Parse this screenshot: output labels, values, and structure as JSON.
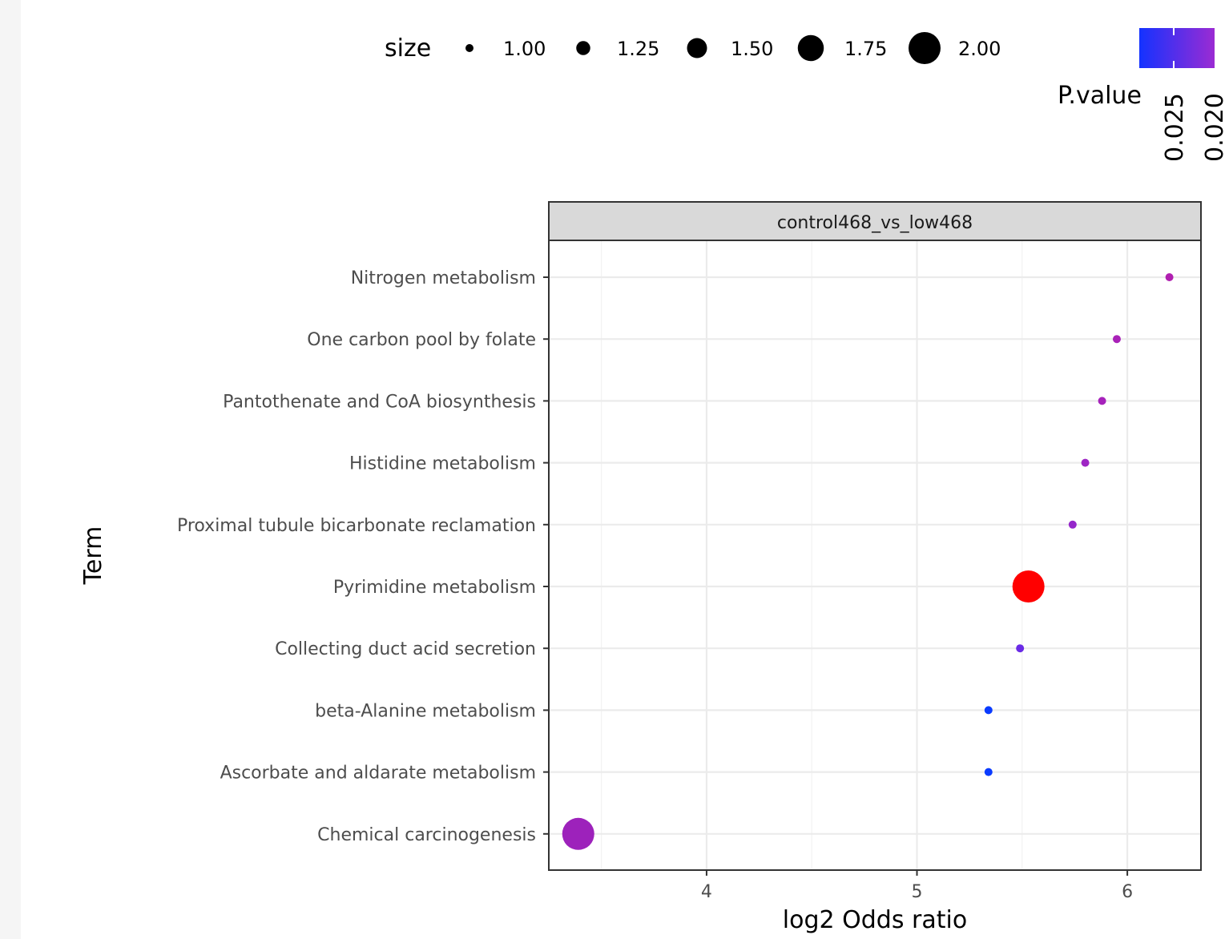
{
  "chart_data": {
    "type": "scatter",
    "panel_title": "control468_vs_low468",
    "xlabel": "log2 Odds ratio",
    "ylabel": "Term",
    "xlim": [
      3.25,
      6.35
    ],
    "x_ticks": [
      4,
      5,
      6
    ],
    "grid": true,
    "terms": [
      "Nitrogen metabolism",
      "One carbon pool by folate",
      "Pantothenate and CoA biosynthesis",
      "Histidine metabolism",
      "Proximal tubule bicarbonate reclamation",
      "Pyrimidine metabolism",
      "Collecting duct acid secretion",
      "beta-Alanine metabolism",
      "Ascorbate and aldarate metabolism",
      "Chemical carcinogenesis"
    ],
    "points": [
      {
        "term": "Nitrogen metabolism",
        "x": 6.2,
        "size": 1.0,
        "color": "#b01fb0"
      },
      {
        "term": "One carbon pool by folate",
        "x": 5.95,
        "size": 1.0,
        "color": "#a922b8"
      },
      {
        "term": "Pantothenate and CoA biosynthesis",
        "x": 5.88,
        "size": 1.0,
        "color": "#a622bb"
      },
      {
        "term": "Histidine metabolism",
        "x": 5.8,
        "size": 1.0,
        "color": "#9e26c4"
      },
      {
        "term": "Proximal tubule bicarbonate reclamation",
        "x": 5.74,
        "size": 1.0,
        "color": "#9527ca"
      },
      {
        "term": "Pyrimidine metabolism",
        "x": 5.53,
        "size": 2.0,
        "color": "#ff0000"
      },
      {
        "term": "Collecting duct acid secretion",
        "x": 5.49,
        "size": 1.0,
        "color": "#6a2be6"
      },
      {
        "term": "beta-Alanine metabolism",
        "x": 5.34,
        "size": 1.0,
        "color": "#0a3bff"
      },
      {
        "term": "Ascorbate and aldarate metabolism",
        "x": 5.34,
        "size": 1.0,
        "color": "#0a3bff"
      },
      {
        "term": "Chemical carcinogenesis",
        "x": 3.39,
        "size": 2.0,
        "color": "#9d22bb"
      }
    ],
    "size_legend": {
      "title": "size",
      "labels": [
        "1.00",
        "1.25",
        "1.50",
        "1.75",
        "2.00"
      ],
      "values": [
        1.0,
        1.25,
        1.5,
        1.75,
        2.0
      ]
    },
    "color_legend": {
      "title": "P.value",
      "labels": [
        "0.025",
        "0.020"
      ],
      "colors": [
        "#1432ff",
        "#9b2bd3"
      ]
    }
  }
}
